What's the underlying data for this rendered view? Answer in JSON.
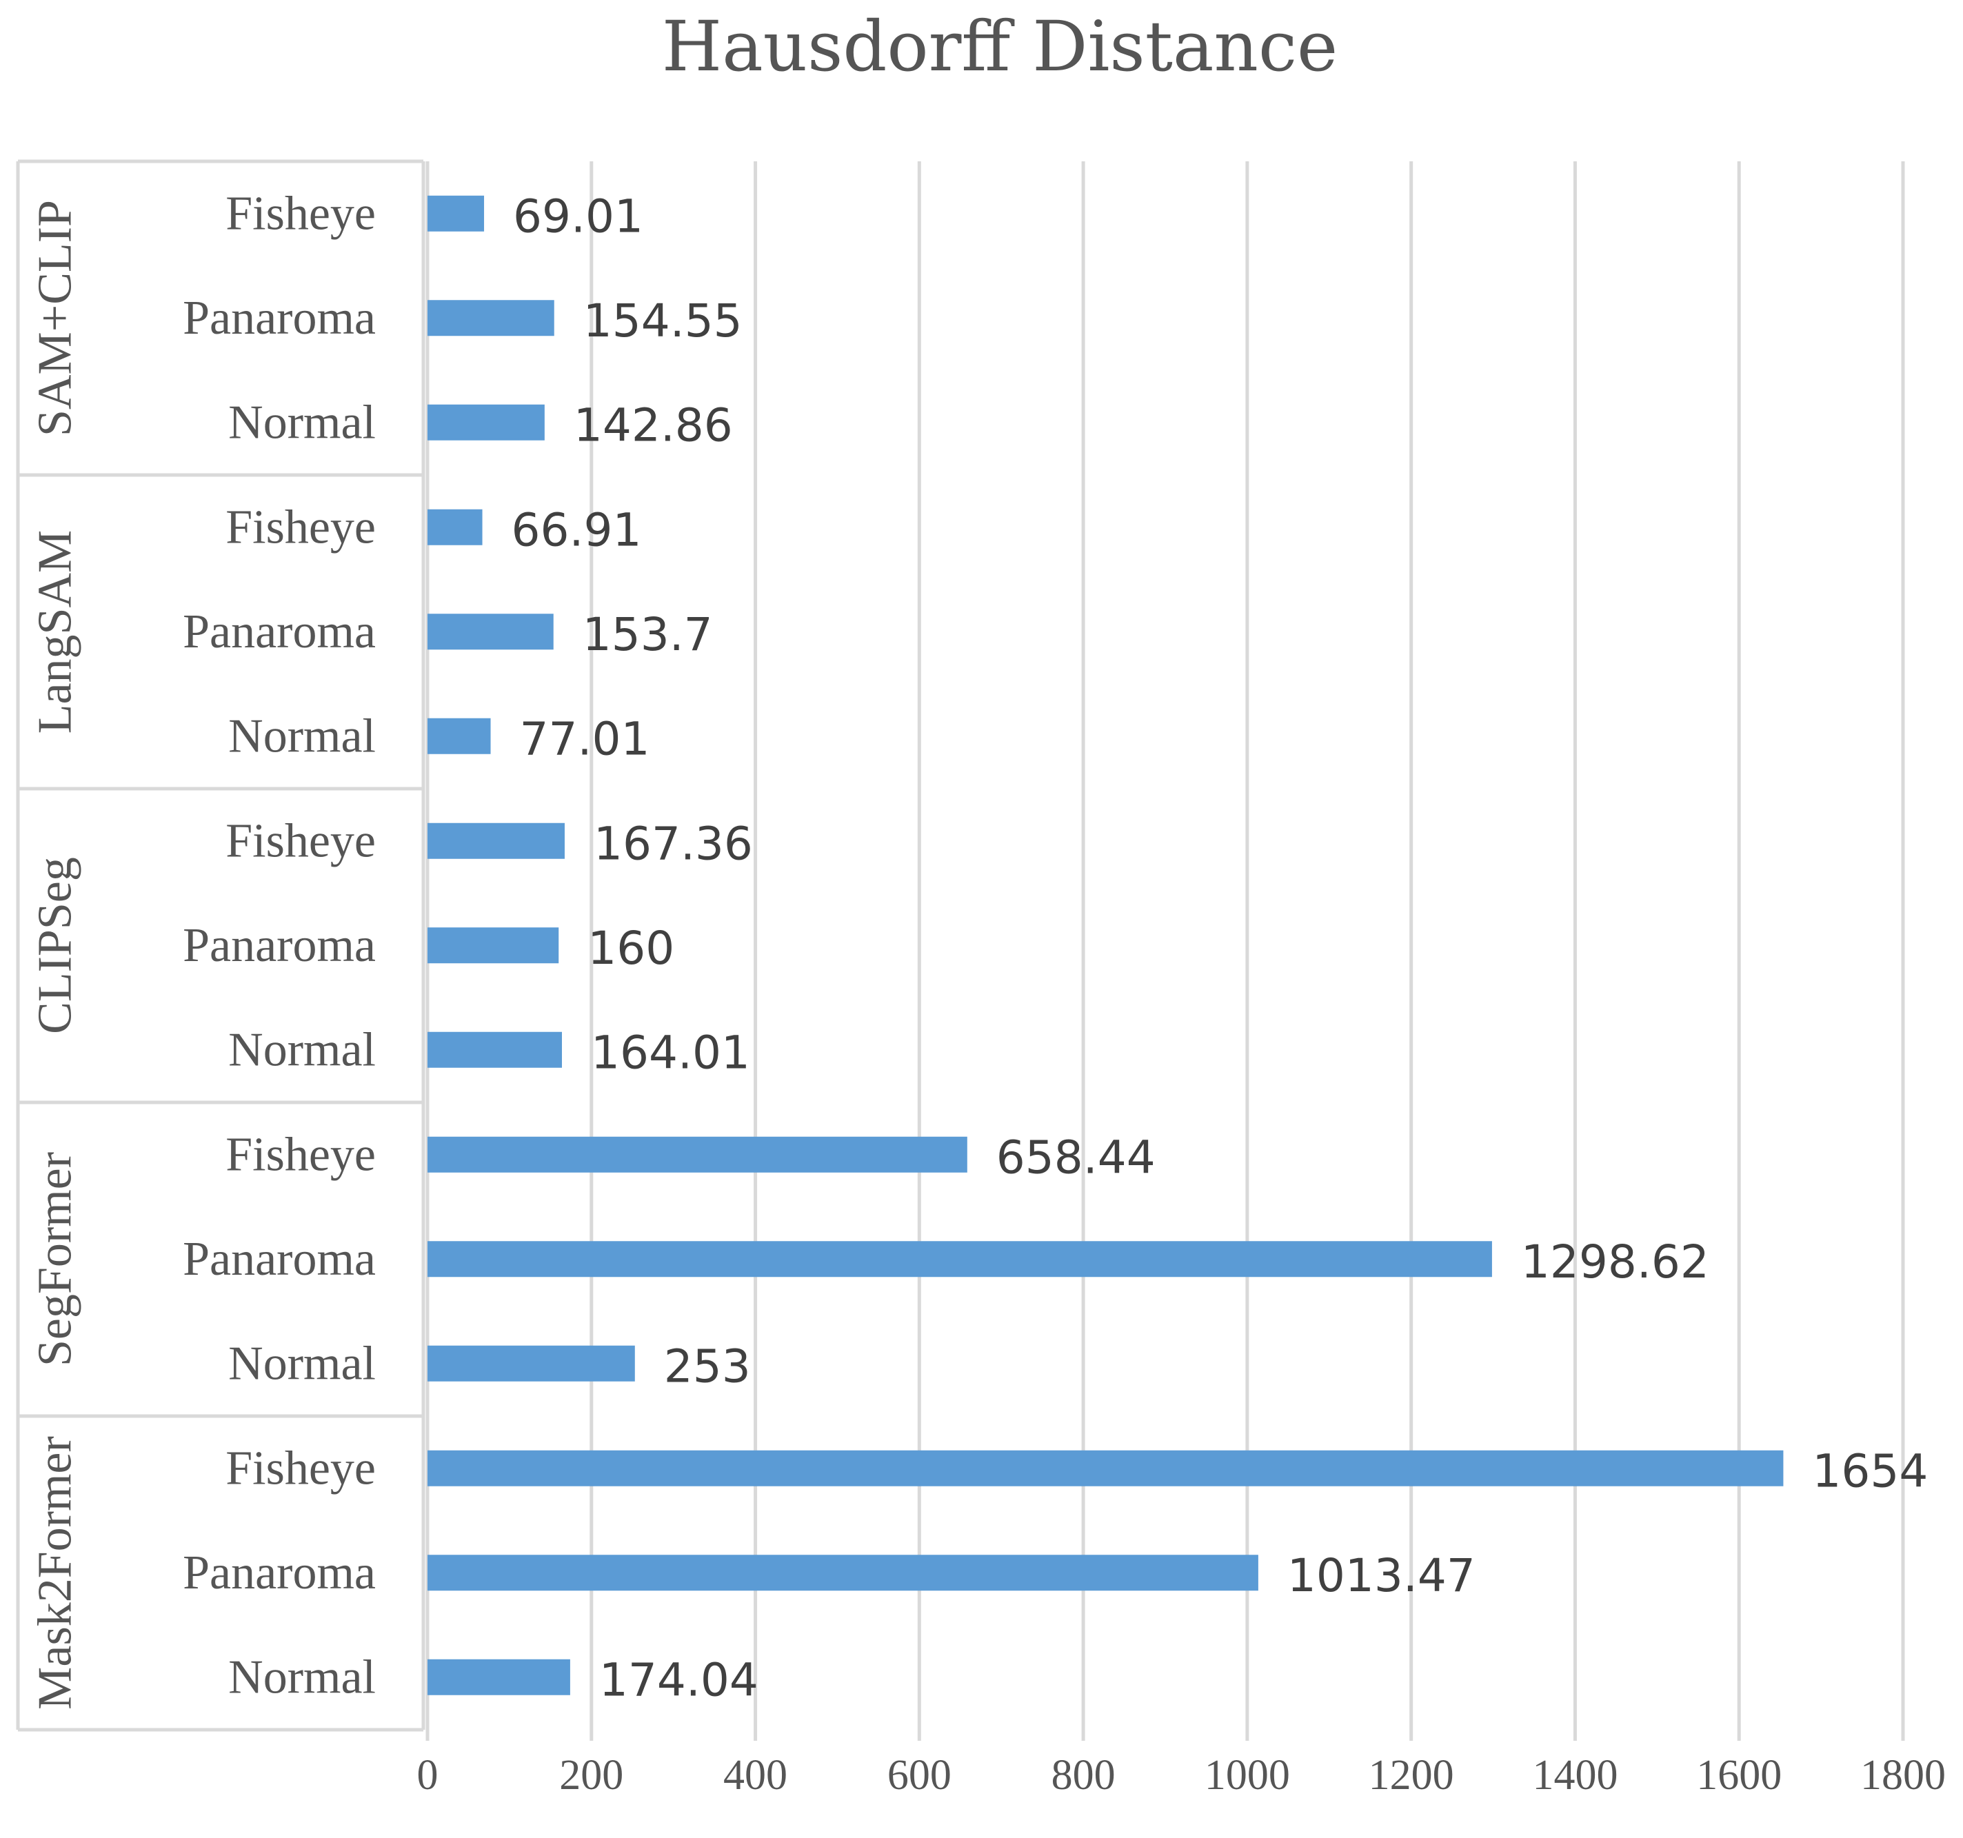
{
  "chart_data": {
    "type": "bar",
    "orientation": "horizontal",
    "title": "Hausdorff Distance",
    "xlim": [
      0,
      1800
    ],
    "x_ticks": [
      "0",
      "200",
      "400",
      "600",
      "800",
      "1000",
      "1200",
      "1400",
      "1600",
      "1800"
    ],
    "grid": "vertical",
    "bar_color": "#5B9BD5",
    "groups": [
      {
        "name": "SAM+CLIP",
        "categories": [
          "Fisheye",
          "Panaroma",
          "Normal"
        ],
        "values": [
          69.01,
          154.55,
          142.86
        ],
        "labels": [
          "69.01",
          "154.55",
          "142.86"
        ]
      },
      {
        "name": "LangSAM",
        "categories": [
          "Fisheye",
          "Panaroma",
          "Normal"
        ],
        "values": [
          66.91,
          153.7,
          77.01
        ],
        "labels": [
          "66.91",
          "153.7",
          "77.01"
        ]
      },
      {
        "name": "CLIPSeg",
        "categories": [
          "Fisheye",
          "Panaroma",
          "Normal"
        ],
        "values": [
          167.36,
          160,
          164.01
        ],
        "labels": [
          "167.36",
          "160",
          "164.01"
        ]
      },
      {
        "name": "SegFormer",
        "categories": [
          "Fisheye",
          "Panaroma",
          "Normal"
        ],
        "values": [
          658.44,
          1298.62,
          253
        ],
        "labels": [
          "658.44",
          "1298.62",
          "253"
        ]
      },
      {
        "name": "Mask2Former",
        "categories": [
          "Fisheye",
          "Panaroma",
          "Normal"
        ],
        "values": [
          1654,
          1013.47,
          174.04
        ],
        "labels": [
          "1654",
          "1013.47",
          "174.04"
        ]
      }
    ]
  }
}
